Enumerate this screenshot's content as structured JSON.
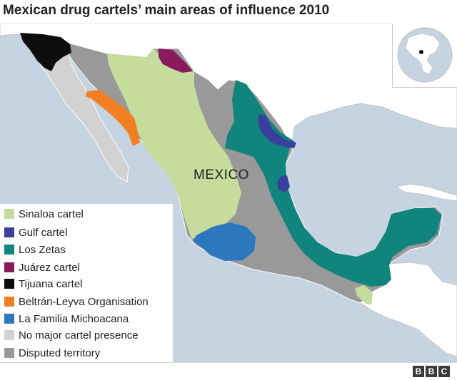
{
  "title": "Mexican drug cartels’ main areas of influence 2010",
  "country_label": "MEXICO",
  "colors": {
    "sea": "#c6d4e1",
    "land": "#ffffff",
    "mexico_base": "#999999",
    "sinaloa": "#c6dc9c",
    "gulf": "#3a3f9c",
    "zetas": "#12847e",
    "juarez": "#8a1a5c",
    "tijuana": "#0d0d0d",
    "beltran": "#f08021",
    "familia": "#2c77bd",
    "none": "#d2d2d2",
    "disputed": "#999999"
  },
  "legend": [
    {
      "label": "Sinaloa cartel",
      "color": "#c6dc9c"
    },
    {
      "label": "Gulf cartel",
      "color": "#3a3f9c"
    },
    {
      "label": "Los Zetas",
      "color": "#12847e"
    },
    {
      "label": "Juárez cartel",
      "color": "#8a1a5c"
    },
    {
      "label": "Tijuana cartel",
      "color": "#0d0d0d"
    },
    {
      "label": "Beltrán-Leyva Organisation",
      "color": "#f08021"
    },
    {
      "label": "La Familia Michoacana",
      "color": "#2c77bd"
    },
    {
      "label": "No major cartel presence",
      "color": "#d2d2d2"
    },
    {
      "label": "Disputed territory",
      "color": "#999999"
    }
  ],
  "footer": {
    "logo": [
      "B",
      "B",
      "C"
    ]
  }
}
